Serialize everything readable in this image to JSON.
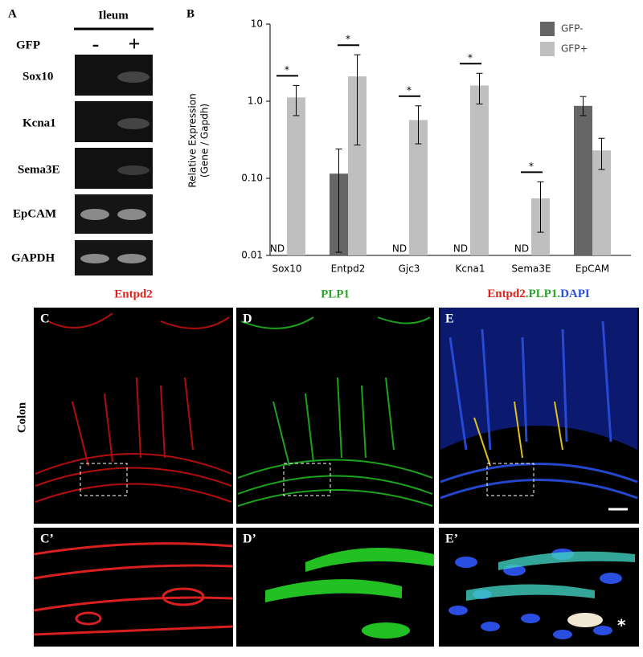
{
  "panel_a": {
    "label": "A",
    "tissue": "Ileum",
    "gfp_label": "GFP",
    "lanes": [
      "-",
      "+"
    ],
    "genes": [
      "Sox10",
      "Kcna1",
      "Sema3E",
      "EpCAM",
      "GAPDH"
    ]
  },
  "chart_data": {
    "type": "bar",
    "panel_label": "B",
    "y_label": [
      "Relative Expression",
      "(Gene / Gapdh)"
    ],
    "categories": [
      "Sox10",
      "Entpd2",
      "Gjc3",
      "Kcna1",
      "Sema3E",
      "EpCAM"
    ],
    "log_scale": true,
    "ylim": [
      0.01,
      10
    ],
    "yticks": [
      0.01,
      {
        "value": 0.1,
        "label": "0.10"
      },
      {
        "value": 1,
        "label": "1.0"
      },
      10
    ],
    "legend": "top-right",
    "not_detected_label": "ND",
    "significance": [
      true,
      true,
      true,
      true,
      true,
      false
    ],
    "significance_label": "*",
    "series": [
      {
        "name": "GFP-",
        "color": "#666666",
        "values": [
          null,
          0.115,
          null,
          null,
          null,
          0.87
        ],
        "error_low": [
          null,
          0.011,
          null,
          null,
          null,
          0.65
        ],
        "error_high": [
          null,
          0.24,
          null,
          null,
          null,
          1.15
        ]
      },
      {
        "name": "GFP+",
        "color": "#bfbfbf",
        "values": [
          1.12,
          2.1,
          0.57,
          1.6,
          0.055,
          0.23
        ],
        "error_low": [
          0.65,
          0.27,
          0.28,
          0.92,
          0.02,
          0.13
        ],
        "error_high": [
          1.6,
          4.0,
          0.87,
          2.3,
          0.09,
          0.33
        ]
      }
    ]
  },
  "panel_images": {
    "row_label": "Colon",
    "titles": {
      "c": "Entpd2",
      "d": "PLP1",
      "e": [
        "Entpd2",
        ".PLP1.",
        "DAPI"
      ]
    },
    "labels": [
      "C",
      "D",
      "E",
      "C’",
      "D’",
      "E’"
    ],
    "asterisk": "*"
  }
}
